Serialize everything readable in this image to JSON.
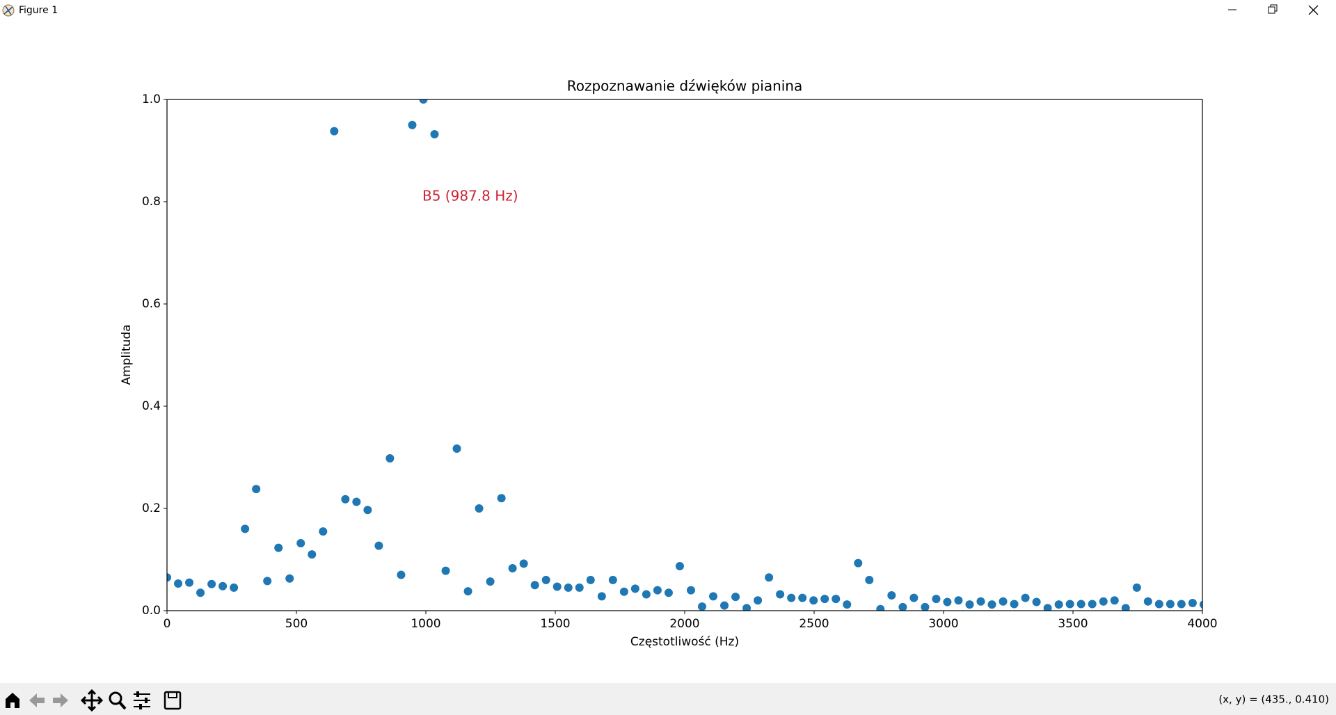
{
  "window": {
    "title": "Figure 1"
  },
  "chart_data": {
    "type": "scatter",
    "title": "Rozpoznawanie dźwięków pianina",
    "xlabel": "Częstotliwość (Hz)",
    "ylabel": "Amplituda",
    "annotation": "B5 (987.8 Hz)",
    "color": "#1f77b4",
    "x": [
      0,
      43.1,
      86.1,
      129.2,
      172.3,
      215.3,
      258.4,
      301.5,
      344.5,
      387.6,
      430.7,
      473.7,
      516.8,
      559.9,
      602.9,
      646.0,
      689.1,
      732.1,
      775.2,
      818.3,
      861.3,
      904.4,
      947.5,
      990.5,
      1033.6,
      1076.7,
      1119.7,
      1162.8,
      1205.8,
      1248.9,
      1292.0,
      1335.0,
      1378.1,
      1421.2,
      1464.2,
      1507.3,
      1550.4,
      1593.4,
      1636.5,
      1679.6,
      1722.6,
      1765.7,
      1808.8,
      1851.8,
      1894.9,
      1938.0,
      1981.0,
      2024.1,
      2067.2,
      2110.2,
      2153.3,
      2196.4,
      2239.4,
      2282.5,
      2325.6,
      2368.6,
      2411.7,
      2454.8,
      2497.8,
      2540.9,
      2584.0,
      2627.0,
      2670.1,
      2713.2,
      2756.2,
      2799.3,
      2842.4,
      2885.4,
      2928.5,
      2971.6,
      3014.6,
      3057.7,
      3100.8,
      3143.8,
      3186.9,
      3230.0,
      3273.0,
      3316.1,
      3359.2,
      3402.2,
      3445.3,
      3488.4,
      3531.4,
      3574.5,
      3617.6,
      3660.6,
      3703.7,
      3746.8,
      3789.8,
      3832.9,
      3876.0,
      3919.0,
      3962.1,
      4005.2
    ],
    "values": [
      0.065,
      0.053,
      0.055,
      0.035,
      0.052,
      0.048,
      0.045,
      0.16,
      0.238,
      0.058,
      0.123,
      0.063,
      0.132,
      0.11,
      0.155,
      0.938,
      0.218,
      0.213,
      0.197,
      0.127,
      0.298,
      0.07,
      0.95,
      1.0,
      0.932,
      0.078,
      0.317,
      0.038,
      0.2,
      0.057,
      0.22,
      0.083,
      0.092,
      0.05,
      0.06,
      0.047,
      0.045,
      0.045,
      0.06,
      0.028,
      0.06,
      0.037,
      0.043,
      0.032,
      0.04,
      0.035,
      0.087,
      0.04,
      0.008,
      0.028,
      0.01,
      0.027,
      0.005,
      0.02,
      0.065,
      0.032,
      0.025,
      0.025,
      0.02,
      0.023,
      0.023,
      0.012,
      0.093,
      0.06,
      0.003,
      0.03,
      0.007,
      0.025,
      0.007,
      0.023,
      0.017,
      0.02,
      0.012,
      0.018,
      0.012,
      0.018,
      0.013,
      0.025,
      0.017,
      0.005,
      0.012,
      0.013,
      0.013,
      0.013,
      0.018,
      0.02,
      0.005,
      0.045,
      0.018,
      0.013,
      0.013,
      0.013,
      0.015,
      0.012
    ],
    "xlim": [
      0,
      4000
    ],
    "ylim": [
      0,
      1
    ],
    "xticks": [
      0,
      500,
      1000,
      1500,
      2000,
      2500,
      3000,
      3500,
      4000
    ],
    "yticks": [
      {
        "value": 0,
        "label": "0.0"
      },
      {
        "value": 0.2,
        "label": "0.2"
      },
      {
        "value": 0.4,
        "label": "0.4"
      },
      {
        "value": 0.6,
        "label": "0.6"
      },
      {
        "value": 0.8,
        "label": "0.8"
      },
      {
        "value": 1,
        "label": "1.0"
      }
    ]
  },
  "toolbar": {
    "status": "(x, y) = (435., 0.410)"
  }
}
